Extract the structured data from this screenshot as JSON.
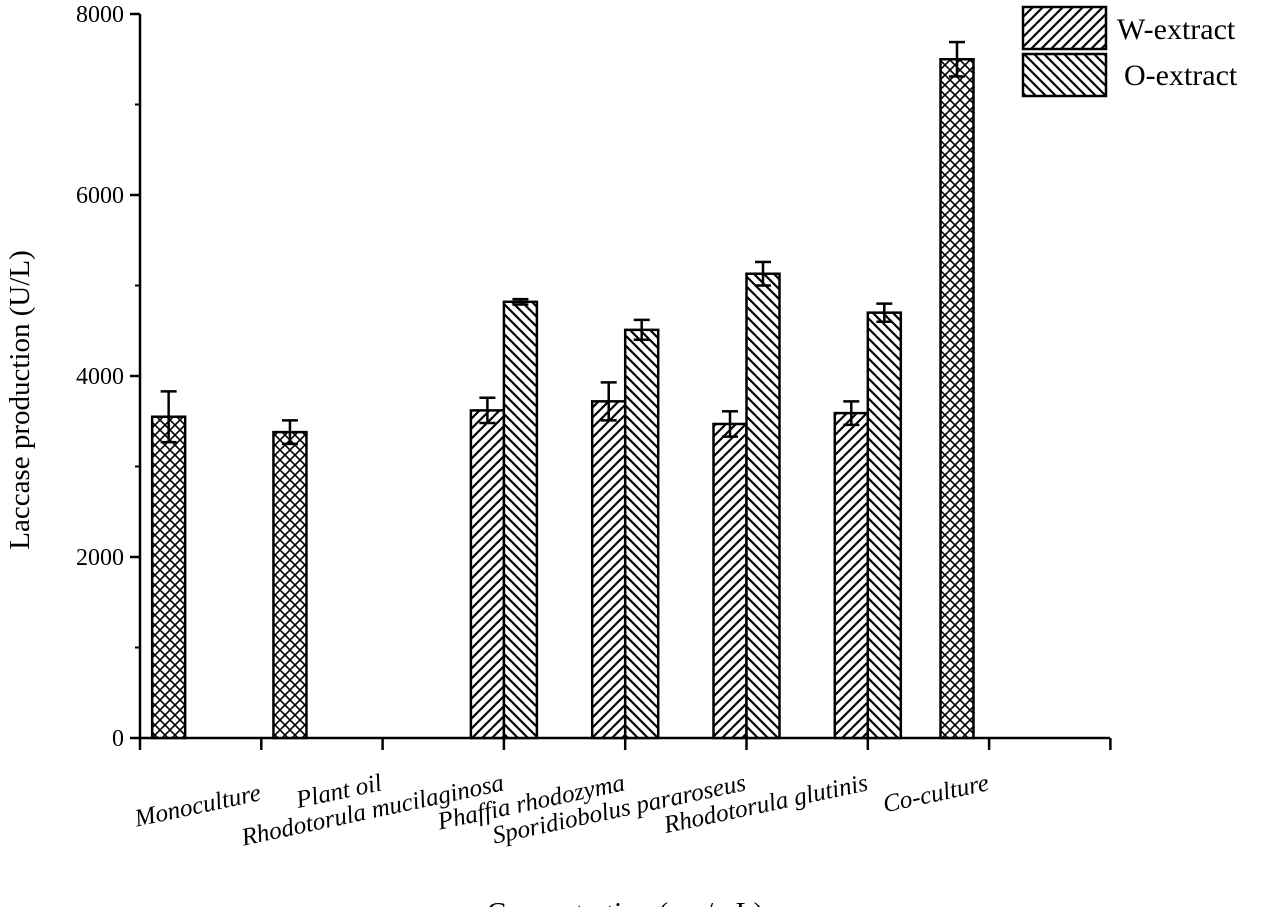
{
  "chart_data": {
    "type": "bar",
    "ylabel": "Laccase production (U/L)",
    "xlabel": "Concentration (mg/mL)",
    "ylim": [
      0,
      8000
    ],
    "yticks": [
      0,
      2000,
      4000,
      6000,
      8000
    ],
    "legend_position": "top-right",
    "grid": false,
    "categories": [
      "Monoculture",
      "Plant oil",
      "Rhodotorula mucilaginosa",
      "Phaffia rhodozyma",
      "Sporidiobolus pararoseus",
      "Rhodotorula glutinis",
      "Co-culture"
    ],
    "single_bars": [
      {
        "category": "Monoculture",
        "value": 3550,
        "error": 280
      },
      {
        "category": "Plant oil",
        "value": 3380,
        "error": 130
      },
      {
        "category": "Co-culture",
        "value": 7500,
        "error": 190
      }
    ],
    "series": [
      {
        "name": "W-extract",
        "pattern": "hatch-forward",
        "values": [
          null,
          null,
          3620,
          3720,
          3470,
          3590,
          null
        ],
        "errors": [
          null,
          null,
          140,
          210,
          140,
          130,
          null
        ]
      },
      {
        "name": "O-extract",
        "pattern": "hatch-backward",
        "values": [
          null,
          null,
          4820,
          4510,
          5130,
          4700,
          null
        ],
        "errors": [
          null,
          null,
          30,
          110,
          130,
          100,
          null
        ]
      }
    ]
  }
}
